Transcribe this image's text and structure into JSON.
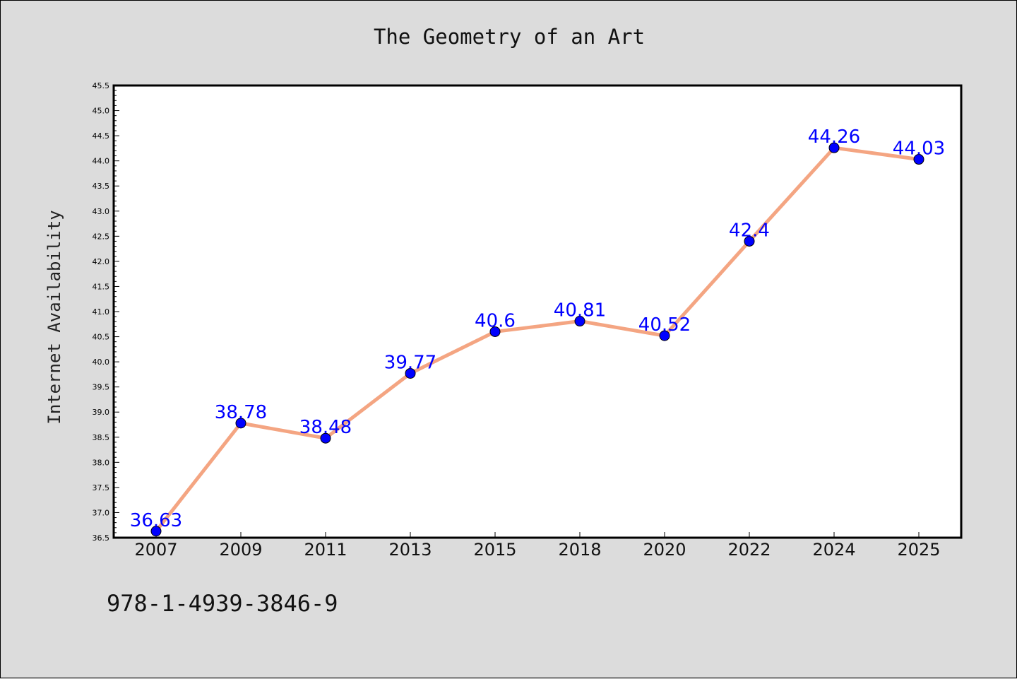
{
  "title": "The Geometry of an Art",
  "isbn": "978-1-4939-3846-9",
  "colors": {
    "background": "#dcdcdc",
    "plot_background": "#ffffff",
    "line": "#f4a582",
    "marker": "#0000ff",
    "data_label": "#0000ff"
  },
  "chart_data": {
    "type": "line",
    "title": "The Geometry of an Art",
    "xlabel": "",
    "ylabel": "Internet Availability",
    "categories": [
      "2007",
      "2009",
      "2011",
      "2013",
      "2015",
      "2018",
      "2020",
      "2022",
      "2024",
      "2025"
    ],
    "series": [
      {
        "values": [
          36.63,
          38.78,
          38.48,
          39.77,
          40.6,
          40.81,
          40.52,
          42.4,
          44.26,
          44.03
        ],
        "data_labels": [
          "36.63",
          "38.78",
          "38.48",
          "39.77",
          "40.6",
          "40.81",
          "40.52",
          "42.4",
          "44.26",
          "44.03"
        ]
      }
    ],
    "ylim": [
      36.5,
      45.5
    ],
    "y_ticks": [
      "36.5",
      "37.0",
      "37.5",
      "38.0",
      "38.5",
      "39.0",
      "39.5",
      "40.0",
      "40.5",
      "41.0",
      "41.5",
      "42.0",
      "42.5",
      "43.0",
      "43.5",
      "44.0",
      "44.5",
      "45.0",
      "45.5"
    ],
    "grid": false,
    "legend": "none"
  }
}
